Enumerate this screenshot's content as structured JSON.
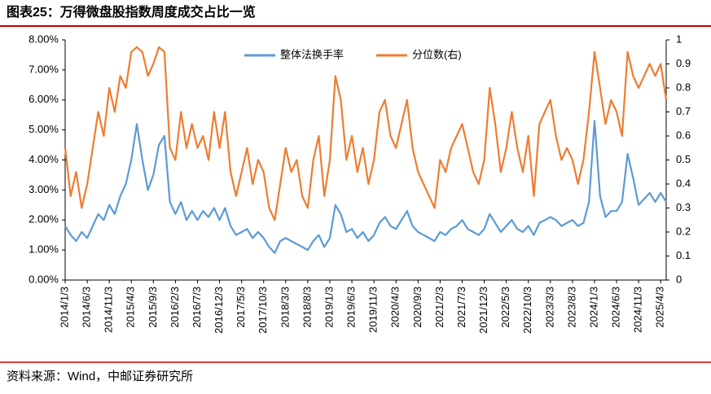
{
  "header": {
    "title": "图表25：万得微盘股指数周度成交占比一览"
  },
  "footer": {
    "source": "资料来源：Wind，中邮证券研究所"
  },
  "chart_data": {
    "type": "line",
    "categories": [
      "2014/1/3",
      null,
      null,
      null,
      "2014/6/3",
      null,
      null,
      null,
      "2014/11/3",
      null,
      null,
      null,
      "2015/4/3",
      null,
      null,
      null,
      "2015/9/3",
      null,
      null,
      null,
      "2016/2/3",
      null,
      null,
      null,
      "2016/7/3",
      null,
      null,
      null,
      "2016/12/3",
      null,
      null,
      null,
      "2017/5/3",
      null,
      null,
      null,
      "2017/10/3",
      null,
      null,
      null,
      "2018/3/3",
      null,
      null,
      null,
      "2018/8/3",
      null,
      null,
      null,
      "2019/1/3",
      null,
      null,
      null,
      "2019/6/3",
      null,
      null,
      null,
      "2019/11/3",
      null,
      null,
      null,
      "2020/4/3",
      null,
      null,
      null,
      "2020/9/3",
      null,
      null,
      null,
      "2021/2/3",
      null,
      null,
      null,
      "2021/7/3",
      null,
      null,
      null,
      "2021/12/3",
      null,
      null,
      null,
      "2022/5/3",
      null,
      null,
      null,
      "2022/10/3",
      null,
      null,
      null,
      "2023/3/3",
      null,
      null,
      null,
      "2023/8/3",
      null,
      null,
      null,
      "2024/1/3",
      null,
      null,
      null,
      "2024/6/3",
      null,
      null,
      null,
      "2024/11/3",
      null,
      null,
      null,
      "2025/4/3",
      null
    ],
    "series": [
      {
        "name": "整体法换手率",
        "color": "#5b9bd5",
        "values": [
          1.8,
          1.5,
          1.3,
          1.6,
          1.4,
          1.8,
          2.2,
          2.0,
          2.5,
          2.2,
          2.8,
          3.2,
          4.0,
          5.2,
          4.0,
          3.0,
          3.5,
          4.5,
          4.8,
          2.6,
          2.2,
          2.6,
          2.0,
          2.3,
          2.0,
          2.3,
          2.1,
          2.4,
          2.0,
          2.4,
          1.8,
          1.5,
          1.6,
          1.7,
          1.4,
          1.6,
          1.4,
          1.1,
          0.9,
          1.3,
          1.4,
          1.3,
          1.2,
          1.1,
          1.0,
          1.3,
          1.5,
          1.1,
          1.4,
          2.5,
          2.2,
          1.6,
          1.7,
          1.4,
          1.6,
          1.3,
          1.5,
          1.9,
          2.1,
          1.8,
          1.7,
          2.0,
          2.3,
          1.8,
          1.6,
          1.5,
          1.4,
          1.3,
          1.6,
          1.5,
          1.7,
          1.8,
          2.0,
          1.7,
          1.6,
          1.5,
          1.7,
          2.2,
          1.9,
          1.6,
          1.8,
          2.0,
          1.7,
          1.6,
          1.8,
          1.5,
          1.9,
          2.0,
          2.1,
          2.0,
          1.8,
          1.9,
          2.0,
          1.8,
          1.9,
          2.6,
          5.3,
          2.8,
          2.1,
          2.3,
          2.3,
          2.6,
          4.2,
          3.4,
          2.5,
          2.7,
          2.9,
          2.6,
          2.9,
          2.6
        ]
      },
      {
        "name": "分位数(右)",
        "color": "#ed7d31",
        "axis": "y2",
        "values": [
          0.55,
          0.35,
          0.45,
          0.3,
          0.4,
          0.55,
          0.7,
          0.6,
          0.8,
          0.7,
          0.85,
          0.8,
          0.95,
          0.97,
          0.95,
          0.85,
          0.9,
          0.97,
          0.95,
          0.55,
          0.5,
          0.7,
          0.55,
          0.65,
          0.55,
          0.6,
          0.5,
          0.7,
          0.55,
          0.7,
          0.45,
          0.35,
          0.45,
          0.55,
          0.4,
          0.5,
          0.45,
          0.3,
          0.25,
          0.4,
          0.55,
          0.45,
          0.5,
          0.35,
          0.3,
          0.5,
          0.6,
          0.35,
          0.5,
          0.85,
          0.75,
          0.5,
          0.6,
          0.45,
          0.55,
          0.4,
          0.5,
          0.7,
          0.75,
          0.6,
          0.55,
          0.65,
          0.75,
          0.55,
          0.45,
          0.4,
          0.35,
          0.3,
          0.5,
          0.45,
          0.55,
          0.6,
          0.65,
          0.55,
          0.45,
          0.4,
          0.5,
          0.8,
          0.65,
          0.45,
          0.55,
          0.7,
          0.55,
          0.45,
          0.6,
          0.35,
          0.65,
          0.7,
          0.75,
          0.6,
          0.5,
          0.55,
          0.5,
          0.4,
          0.5,
          0.7,
          0.95,
          0.8,
          0.65,
          0.75,
          0.7,
          0.6,
          0.95,
          0.85,
          0.8,
          0.85,
          0.9,
          0.85,
          0.9,
          0.75
        ]
      }
    ],
    "ylim": [
      0,
      8
    ],
    "yticks": [
      {
        "value": 0,
        "label": "0.00%"
      },
      {
        "value": 1,
        "label": "1.00%"
      },
      {
        "value": 2,
        "label": "2.00%"
      },
      {
        "value": 3,
        "label": "3.00%"
      },
      {
        "value": 4,
        "label": "4.00%"
      },
      {
        "value": 5,
        "label": "5.00%"
      },
      {
        "value": 6,
        "label": "6.00%"
      },
      {
        "value": 7,
        "label": "7.00%"
      },
      {
        "value": 8,
        "label": "8.00%"
      }
    ],
    "y2lim": [
      0,
      1
    ],
    "y2ticks": [
      0,
      0.1,
      0.2,
      0.3,
      0.4,
      0.5,
      0.6,
      0.7,
      0.8,
      0.9,
      1
    ],
    "legend": "top"
  }
}
